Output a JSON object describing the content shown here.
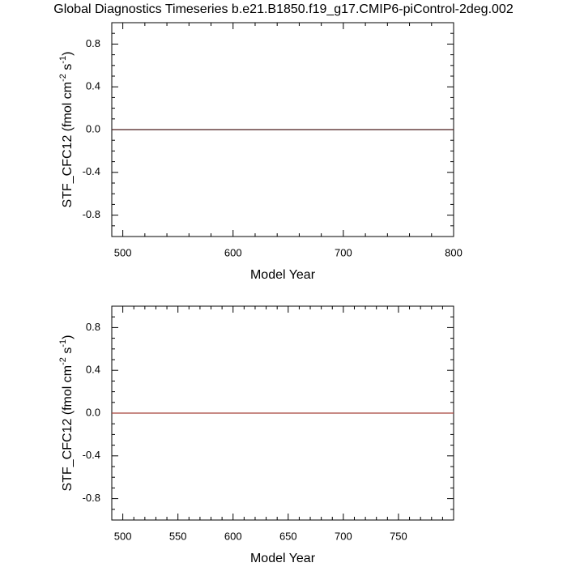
{
  "chart_data": [
    {
      "type": "line",
      "title": "Global Diagnostics Timeseries b.e21.B1850.f19_g17.CMIP6-piControl-2deg.002",
      "xlabel": "Model Year",
      "ylabel_parts": [
        "STF_CFC12 (fmol cm",
        "-2",
        " s",
        "-1",
        ")"
      ],
      "xlim": [
        490,
        800
      ],
      "xticks": [
        500,
        600,
        700,
        800
      ],
      "xminorticks": [
        520,
        540,
        560,
        580,
        620,
        640,
        660,
        680,
        720,
        740,
        760,
        780
      ],
      "ylim": [
        -1,
        1
      ],
      "yticks": [
        {
          "value": -0.8,
          "label": "-0.8"
        },
        {
          "value": -0.4,
          "label": "-0.4"
        },
        {
          "value": 0,
          "label": "0.0"
        },
        {
          "value": 0.4,
          "label": "0.4"
        },
        {
          "value": 0.8,
          "label": "0.8"
        }
      ],
      "yminorticks": [
        -1,
        -0.9,
        -0.7,
        -0.6,
        -0.5,
        -0.3,
        -0.2,
        -0.1,
        0.1,
        0.2,
        0.3,
        0.5,
        0.6,
        0.7,
        0.9,
        1
      ],
      "series": [
        {
          "color": "#4a1c1c",
          "x": [
            490,
            800
          ],
          "values": [
            0,
            0
          ]
        }
      ]
    },
    {
      "type": "line",
      "xlabel": "Model Year",
      "ylabel_parts": [
        "STF_CFC12 (fmol cm",
        "-2",
        " s",
        "-1",
        ")"
      ],
      "xlim": [
        490,
        800
      ],
      "xticks": [
        500,
        550,
        600,
        650,
        700,
        750
      ],
      "xminorticks": [
        510,
        520,
        530,
        540,
        560,
        570,
        580,
        590,
        610,
        620,
        630,
        640,
        660,
        670,
        680,
        690,
        710,
        720,
        730,
        740,
        760,
        770,
        780,
        790
      ],
      "ylim": [
        -1,
        1
      ],
      "yticks": [
        {
          "value": -0.8,
          "label": "-0.8"
        },
        {
          "value": -0.4,
          "label": "-0.4"
        },
        {
          "value": 0,
          "label": "0.0"
        },
        {
          "value": 0.4,
          "label": "0.4"
        },
        {
          "value": 0.8,
          "label": "0.8"
        }
      ],
      "yminorticks": [
        -1,
        -0.9,
        -0.7,
        -0.6,
        -0.5,
        -0.3,
        -0.2,
        -0.1,
        0.1,
        0.2,
        0.3,
        0.5,
        0.6,
        0.7,
        0.9,
        1
      ],
      "series": [
        {
          "color": "#a8443c",
          "x": [
            490,
            800
          ],
          "values": [
            0,
            0
          ]
        }
      ]
    }
  ]
}
